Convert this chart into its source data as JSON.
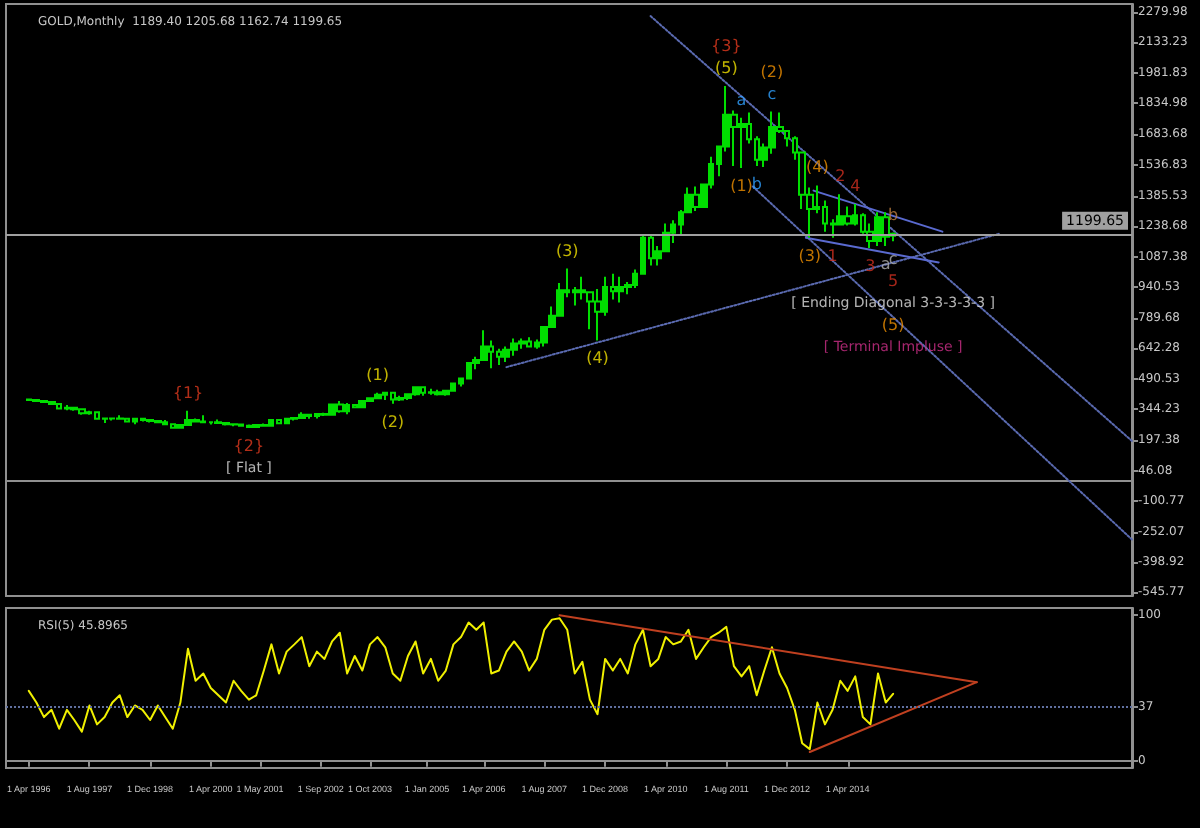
{
  "chart_data": [
    {
      "type": "candlestick",
      "title": "GOLD,Monthly  1189.40 1205.68 1162.74 1199.65",
      "color": "#00dd00",
      "tick_labels": "y",
      "x": [
        "1996-04",
        "1996-06",
        "1996-08",
        "1996-10",
        "1996-12",
        "1997-02",
        "1997-04",
        "1997-06",
        "1997-08",
        "1997-10",
        "1997-12",
        "1998-02",
        "1998-04",
        "1998-06",
        "1998-08",
        "1998-10",
        "1998-12",
        "1999-02",
        "1999-04",
        "1999-06",
        "1999-08",
        "1999-10",
        "1999-12",
        "2000-02",
        "2000-04",
        "2000-06",
        "2000-08",
        "2000-10",
        "2000-12",
        "2001-02",
        "2001-04",
        "2001-06",
        "2001-08",
        "2001-10",
        "2001-12",
        "2002-02",
        "2002-04",
        "2002-06",
        "2002-08",
        "2002-10",
        "2002-12",
        "2003-02",
        "2003-04",
        "2003-06",
        "2003-08",
        "2003-10",
        "2003-12",
        "2004-02",
        "2004-04",
        "2004-06",
        "2004-08",
        "2004-10",
        "2004-12",
        "2005-02",
        "2005-04",
        "2005-06",
        "2005-08",
        "2005-10",
        "2005-12",
        "2006-02",
        "2006-04",
        "2006-06",
        "2006-08",
        "2006-10",
        "2006-12",
        "2007-02",
        "2007-04",
        "2007-06",
        "2007-08",
        "2007-10",
        "2007-12",
        "2008-02",
        "2008-04",
        "2008-06",
        "2008-08",
        "2008-10",
        "2008-12",
        "2009-02",
        "2009-04",
        "2009-06",
        "2009-08",
        "2009-10",
        "2009-12",
        "2010-02",
        "2010-04",
        "2010-06",
        "2010-08",
        "2010-10",
        "2010-12",
        "2011-02",
        "2011-04",
        "2011-06",
        "2011-08",
        "2011-10",
        "2011-12",
        "2012-02",
        "2012-04",
        "2012-06",
        "2012-08",
        "2012-10",
        "2012-12",
        "2013-02",
        "2013-04",
        "2013-06",
        "2013-08",
        "2013-10",
        "2013-12",
        "2014-02",
        "2014-04",
        "2014-06",
        "2014-08",
        "2014-10",
        "2014-12",
        "2015-02",
        "2015-04"
      ],
      "ohlc": [
        [
          392,
          396,
          385,
          390
        ],
        [
          390,
          392,
          380,
          385
        ],
        [
          385,
          390,
          378,
          380
        ],
        [
          380,
          385,
          368,
          370
        ],
        [
          370,
          372,
          345,
          348
        ],
        [
          348,
          365,
          340,
          352
        ],
        [
          352,
          356,
          338,
          345
        ],
        [
          345,
          348,
          318,
          325
        ],
        [
          325,
          338,
          318,
          330
        ],
        [
          330,
          335,
          295,
          298
        ],
        [
          298,
          305,
          278,
          300
        ],
        [
          300,
          305,
          290,
          300
        ],
        [
          300,
          315,
          295,
          298
        ],
        [
          298,
          300,
          280,
          285
        ],
        [
          285,
          300,
          272,
          298
        ],
        [
          298,
          302,
          285,
          292
        ],
        [
          292,
          294,
          280,
          288
        ],
        [
          288,
          290,
          278,
          282
        ],
        [
          282,
          292,
          270,
          272
        ],
        [
          272,
          274,
          252,
          255
        ],
        [
          255,
          270,
          252,
          268
        ],
        [
          268,
          338,
          265,
          292
        ],
        [
          292,
          300,
          280,
          285
        ],
        [
          285,
          315,
          280,
          282
        ],
        [
          282,
          285,
          270,
          282
        ],
        [
          282,
          295,
          276,
          278
        ],
        [
          278,
          280,
          266,
          272
        ],
        [
          272,
          275,
          262,
          270
        ],
        [
          270,
          275,
          260,
          265
        ],
        [
          265,
          270,
          255,
          258
        ],
        [
          258,
          272,
          255,
          268
        ],
        [
          268,
          275,
          262,
          265
        ],
        [
          265,
          295,
          262,
          292
        ],
        [
          292,
          293,
          272,
          276
        ],
        [
          276,
          300,
          272,
          298
        ],
        [
          298,
          305,
          290,
          302
        ],
        [
          302,
          330,
          300,
          318
        ],
        [
          318,
          320,
          298,
          312
        ],
        [
          312,
          325,
          300,
          322
        ],
        [
          322,
          328,
          312,
          318
        ],
        [
          318,
          372,
          318,
          368
        ],
        [
          368,
          385,
          328,
          335
        ],
        [
          335,
          375,
          320,
          365
        ],
        [
          365,
          367,
          353,
          355
        ],
        [
          355,
          390,
          350,
          385
        ],
        [
          385,
          399,
          384,
          398
        ],
        [
          398,
          425,
          398,
          415
        ],
        [
          415,
          430,
          390,
          425
        ],
        [
          425,
          430,
          372,
          392
        ],
        [
          392,
          410,
          385,
          400
        ],
        [
          400,
          420,
          390,
          418
        ],
        [
          418,
          455,
          410,
          452
        ],
        [
          452,
          455,
          410,
          425
        ],
        [
          425,
          445,
          415,
          428
        ],
        [
          428,
          440,
          412,
          418
        ],
        [
          418,
          440,
          410,
          435
        ],
        [
          435,
          475,
          430,
          470
        ],
        [
          470,
          500,
          455,
          495
        ],
        [
          495,
          575,
          490,
          570
        ],
        [
          570,
          600,
          540,
          585
        ],
        [
          585,
          730,
          580,
          650
        ],
        [
          650,
          680,
          545,
          625
        ],
        [
          625,
          640,
          560,
          600
        ],
        [
          600,
          650,
          575,
          635
        ],
        [
          635,
          690,
          605,
          665
        ],
        [
          665,
          690,
          640,
          675
        ],
        [
          675,
          695,
          645,
          650
        ],
        [
          650,
          685,
          640,
          670
        ],
        [
          670,
          750,
          650,
          745
        ],
        [
          745,
          845,
          740,
          800
        ],
        [
          800,
          960,
          800,
          925
        ],
        [
          925,
          1030,
          890,
          915
        ],
        [
          915,
          940,
          850,
          925
        ],
        [
          925,
          990,
          880,
          915
        ],
        [
          915,
          920,
          735,
          870
        ],
        [
          870,
          930,
          680,
          820
        ],
        [
          820,
          990,
          800,
          940
        ],
        [
          940,
          1005,
          880,
          920
        ],
        [
          920,
          990,
          865,
          940
        ],
        [
          940,
          965,
          905,
          950
        ],
        [
          950,
          1025,
          935,
          1005
        ],
        [
          1005,
          1190,
          1000,
          1180
        ],
        [
          1180,
          1190,
          1045,
          1080
        ],
        [
          1080,
          1140,
          1045,
          1115
        ],
        [
          1115,
          1250,
          1110,
          1205
        ],
        [
          1205,
          1265,
          1155,
          1245
        ],
        [
          1245,
          1315,
          1190,
          1305
        ],
        [
          1305,
          1425,
          1305,
          1390
        ],
        [
          1390,
          1430,
          1310,
          1330
        ],
        [
          1330,
          1445,
          1325,
          1440
        ],
        [
          1440,
          1575,
          1420,
          1540
        ],
        [
          1540,
          1630,
          1480,
          1625
        ],
        [
          1625,
          1920,
          1600,
          1780
        ],
        [
          1780,
          1800,
          1530,
          1720
        ],
        [
          1720,
          1765,
          1520,
          1735
        ],
        [
          1735,
          1790,
          1640,
          1660
        ],
        [
          1660,
          1675,
          1530,
          1560
        ],
        [
          1560,
          1640,
          1525,
          1620
        ],
        [
          1620,
          1795,
          1590,
          1720
        ],
        [
          1720,
          1790,
          1690,
          1700
        ],
        [
          1700,
          1700,
          1625,
          1665
        ],
        [
          1665,
          1675,
          1560,
          1595
        ],
        [
          1595,
          1600,
          1320,
          1390
        ],
        [
          1390,
          1425,
          1180,
          1320
        ],
        [
          1320,
          1435,
          1300,
          1330
        ],
        [
          1330,
          1362,
          1210,
          1250
        ],
        [
          1250,
          1270,
          1180,
          1245
        ],
        [
          1245,
          1392,
          1240,
          1285
        ],
        [
          1285,
          1332,
          1240,
          1250
        ],
        [
          1250,
          1345,
          1240,
          1290
        ],
        [
          1290,
          1300,
          1200,
          1210
        ],
        [
          1210,
          1250,
          1130,
          1165
        ],
        [
          1165,
          1305,
          1140,
          1280
        ],
        [
          1280,
          1305,
          1140,
          1185
        ],
        [
          1189.4,
          1205.68,
          1162.74,
          1199.65
        ]
      ],
      "series": [
        {
          "type": "line",
          "x": [
            "2009-12",
            "2020-07"
          ],
          "values": [
            2260,
            190
          ],
          "color": "#5a6ab0",
          "line_style": "dotted"
        },
        {
          "type": "line",
          "x": [
            "2012-03",
            "2020-07"
          ],
          "values": [
            1430,
            -290
          ],
          "color": "#5a6ab0",
          "line_style": "dotted"
        },
        {
          "type": "line",
          "x": [
            "2006-10",
            "2017-08"
          ],
          "values": [
            550,
            1200
          ],
          "color": "#5a6ab0",
          "line_style": "dotted"
        },
        {
          "type": "line",
          "x": [
            "2013-07",
            "2016-05"
          ],
          "values": [
            1410,
            1210
          ],
          "color": "#5a6ad0",
          "line_style": "solid"
        },
        {
          "type": "line",
          "x": [
            "2013-05",
            "2016-04"
          ],
          "values": [
            1180,
            1060
          ],
          "color": "#5a6ad0",
          "line_style": "solid"
        }
      ],
      "xlim": [
        "1995-10",
        "2020-07"
      ],
      "ylim": [
        -565,
        2319
      ],
      "yticks": [
        -545.77,
        -398.92,
        -252.07,
        -100.77,
        46.08,
        197.38,
        344.23,
        490.53,
        642.28,
        789.68,
        940.53,
        1087.38,
        1238.68,
        1385.53,
        1536.83,
        1683.68,
        1834.98,
        1981.83,
        2133.23,
        2279.98
      ],
      "marker": "none",
      "ref_lines": [
        {
          "axis": "y",
          "value": 1199.65,
          "label": "1199.65",
          "color": "#a0a0a0"
        }
      ],
      "annotations": [
        {
          "text": "{1}",
          "x": "1999-10",
          "y": 338
        },
        {
          "text": "{2}",
          "x": "2001-02",
          "y": 255
        },
        {
          "text": "[ Flat ]",
          "x": "2001-02",
          "y": 255
        },
        {
          "text": "(1)",
          "x": "2003-12",
          "y": 425
        },
        {
          "text": "(2)",
          "x": "2004-04",
          "y": 372
        },
        {
          "text": "(3)",
          "x": "2008-02",
          "y": 1030
        },
        {
          "text": "(4)",
          "x": "2008-10",
          "y": 680
        },
        {
          "text": "(5)",
          "x": "2011-08",
          "y": 1920
        },
        {
          "text": "{3}",
          "x": "2011-08",
          "y": 1920
        },
        {
          "text": "a",
          "x": "2011-12",
          "y": 1765
        },
        {
          "text": "c",
          "x": "2012-08",
          "y": 1795
        },
        {
          "text": "(2)",
          "x": "2012-08",
          "y": 1795
        },
        {
          "text": "(1)",
          "x": "2011-12",
          "y": 1520
        },
        {
          "text": "b",
          "x": "2012-04",
          "y": 1530
        },
        {
          "text": "(4)",
          "x": "2013-08",
          "y": 1435
        },
        {
          "text": "(3)",
          "x": "2013-06",
          "y": 1180
        },
        {
          "text": "1",
          "x": "2013-12",
          "y": 1180
        },
        {
          "text": "2",
          "x": "2014-02",
          "y": 1392
        },
        {
          "text": "3",
          "x": "2014-10",
          "y": 1130
        },
        {
          "text": "4",
          "x": "2014-06",
          "y": 1345
        },
        {
          "text": "a",
          "x": "2015-02",
          "y": 1140
        },
        {
          "text": "b",
          "x": "2015-04",
          "y": 1205.68
        },
        {
          "text": "c",
          "x": "2015-04",
          "y": 1162.74
        },
        {
          "text": "5",
          "x": "2015-04",
          "y": 1162.74
        },
        "[ Ending Diagonal 3-3-3-3-3 ]",
        "(5)",
        "[ Terminal Impluse ]"
      ]
    },
    {
      "type": "line",
      "title": "RSI(5) 45.8965",
      "marker": "none",
      "x": [
        "1996-04",
        "1996-06",
        "1996-08",
        "1996-10",
        "1996-12",
        "1997-02",
        "1997-04",
        "1997-06",
        "1997-08",
        "1997-10",
        "1997-12",
        "1998-02",
        "1998-04",
        "1998-06",
        "1998-08",
        "1998-10",
        "1998-12",
        "1999-02",
        "1999-04",
        "1999-06",
        "1999-08",
        "1999-10",
        "1999-12",
        "2000-02",
        "2000-04",
        "2000-06",
        "2000-08",
        "2000-10",
        "2000-12",
        "2001-02",
        "2001-04",
        "2001-06",
        "2001-08",
        "2001-10",
        "2001-12",
        "2002-02",
        "2002-04",
        "2002-06",
        "2002-08",
        "2002-10",
        "2002-12",
        "2003-02",
        "2003-04",
        "2003-06",
        "2003-08",
        "2003-10",
        "2003-12",
        "2004-02",
        "2004-04",
        "2004-06",
        "2004-08",
        "2004-10",
        "2004-12",
        "2005-02",
        "2005-04",
        "2005-06",
        "2005-08",
        "2005-10",
        "2005-12",
        "2006-02",
        "2006-04",
        "2006-06",
        "2006-08",
        "2006-10",
        "2006-12",
        "2007-02",
        "2007-04",
        "2007-06",
        "2007-08",
        "2007-10",
        "2007-12",
        "2008-02",
        "2008-04",
        "2008-06",
        "2008-08",
        "2008-10",
        "2008-12",
        "2009-02",
        "2009-04",
        "2009-06",
        "2009-08",
        "2009-10",
        "2009-12",
        "2010-02",
        "2010-04",
        "2010-06",
        "2010-08",
        "2010-10",
        "2010-12",
        "2011-02",
        "2011-04",
        "2011-06",
        "2011-08",
        "2011-10",
        "2011-12",
        "2012-02",
        "2012-04",
        "2012-06",
        "2012-08",
        "2012-10",
        "2012-12",
        "2013-02",
        "2013-04",
        "2013-06",
        "2013-08",
        "2013-10",
        "2013-12",
        "2014-02",
        "2014-04",
        "2014-06",
        "2014-08",
        "2014-10",
        "2014-12",
        "2015-02",
        "2015-04"
      ],
      "series": [
        {
          "color": "#f0f000",
          "values": [
            48,
            40,
            30,
            35,
            22,
            35,
            28,
            20,
            38,
            25,
            30,
            40,
            45,
            30,
            38,
            35,
            28,
            38,
            30,
            22,
            40,
            77,
            55,
            60,
            50,
            45,
            40,
            55,
            48,
            42,
            45,
            62,
            80,
            60,
            75,
            80,
            85,
            65,
            75,
            70,
            82,
            88,
            60,
            72,
            62,
            80,
            85,
            78,
            60,
            55,
            72,
            82,
            60,
            70,
            55,
            62,
            80,
            85,
            95,
            90,
            95,
            60,
            62,
            75,
            82,
            75,
            62,
            70,
            90,
            97,
            98,
            90,
            60,
            68,
            42,
            32,
            70,
            62,
            70,
            60,
            80,
            90,
            65,
            70,
            85,
            80,
            82,
            90,
            70,
            78,
            85,
            88,
            92,
            65,
            58,
            65,
            45,
            62,
            78,
            60,
            50,
            35,
            12,
            8,
            40,
            25,
            35,
            55,
            48,
            58,
            30,
            25,
            60,
            40,
            46
          ]
        },
        {
          "type": "line",
          "x": [
            "2007-12",
            "2017-02"
          ],
          "values": [
            100,
            54
          ],
          "color": "#c04020",
          "line_style": "solid"
        },
        {
          "type": "line",
          "x": [
            "2013-06",
            "2017-02"
          ],
          "values": [
            6,
            54
          ],
          "color": "#c04020",
          "line_style": "solid"
        }
      ],
      "xlim": [
        "1995-10",
        "2020-07"
      ],
      "ylim": [
        -5,
        105
      ],
      "yticks": [
        0,
        37,
        100
      ],
      "xticks": [
        {
          "value": "1996-04-01",
          "label": "1 Apr 1996"
        },
        {
          "value": "1997-08-01",
          "label": "1 Aug 1997"
        },
        {
          "value": "1998-12-01",
          "label": "1 Dec 1998"
        },
        {
          "value": "2000-04-01",
          "label": "1 Apr 2000"
        },
        {
          "value": "2001-05-01",
          "label": "1 May 2001"
        },
        {
          "value": "2002-09-01",
          "label": "1 Sep 2002"
        },
        {
          "value": "2003-10-01",
          "label": "1 Oct 2003"
        },
        {
          "value": "2005-01-01",
          "label": "1 Jan 2005"
        },
        {
          "value": "2006-04-01",
          "label": "1 Apr 2006"
        },
        {
          "value": "2007-08-01",
          "label": "1 Aug 2007"
        },
        {
          "value": "2008-12-01",
          "label": "1 Dec 2008"
        },
        {
          "value": "2010-04-01",
          "label": "1 Apr 2010"
        },
        {
          "value": "2011-08-01",
          "label": "1 Aug 2011"
        },
        {
          "value": "2012-12-01",
          "label": "1 Dec 2012"
        },
        {
          "value": "2014-04-01",
          "label": "1 Apr 2014"
        }
      ],
      "ref_lines": [
        {
          "axis": "y",
          "value": 37,
          "label": null,
          "color": "#6070a0",
          "line_style": "dotted"
        }
      ]
    }
  ]
}
